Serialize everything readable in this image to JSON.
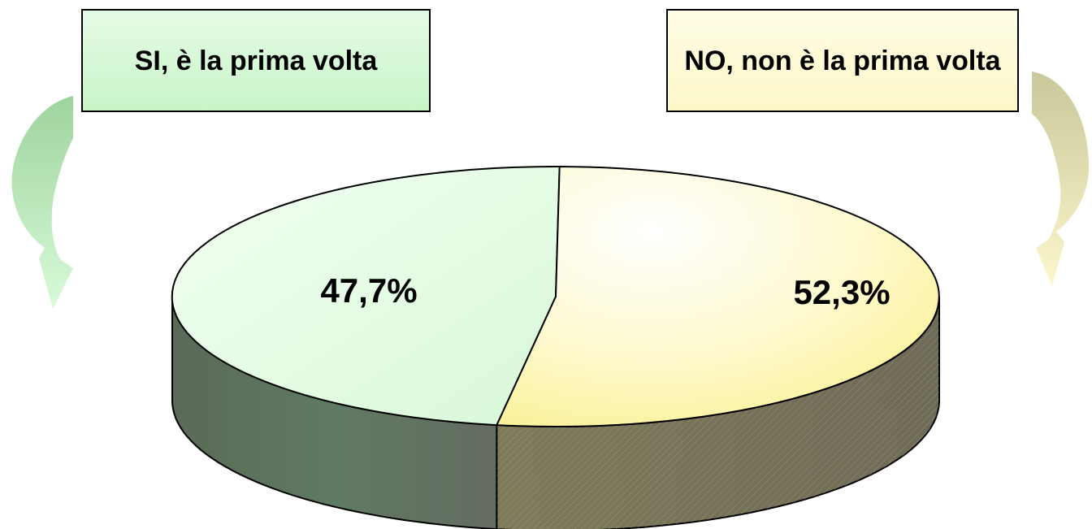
{
  "chart_data": {
    "type": "pie",
    "style": "3d-pie",
    "categories": [
      "SI, è la prima volta",
      "NO, non è la prima volta"
    ],
    "values": [
      47.7,
      52.3
    ],
    "value_labels": [
      "47,7%",
      "52,3%"
    ],
    "legend_placement": "top",
    "colors": {
      "si_top": "#e4fbe4",
      "si_side": "#5f6f5f",
      "no_top": "#fdf7b2",
      "no_side": "#7a7460",
      "si_box": "#c8f5c8",
      "no_box": "#fcf7c8"
    }
  },
  "legend": {
    "si_label": "SI, è la prima volta",
    "no_label": "NO, non è la prima volta"
  },
  "icons": {
    "left_arrow": "curved-arrow-green",
    "right_arrow": "curved-arrow-yellow"
  }
}
